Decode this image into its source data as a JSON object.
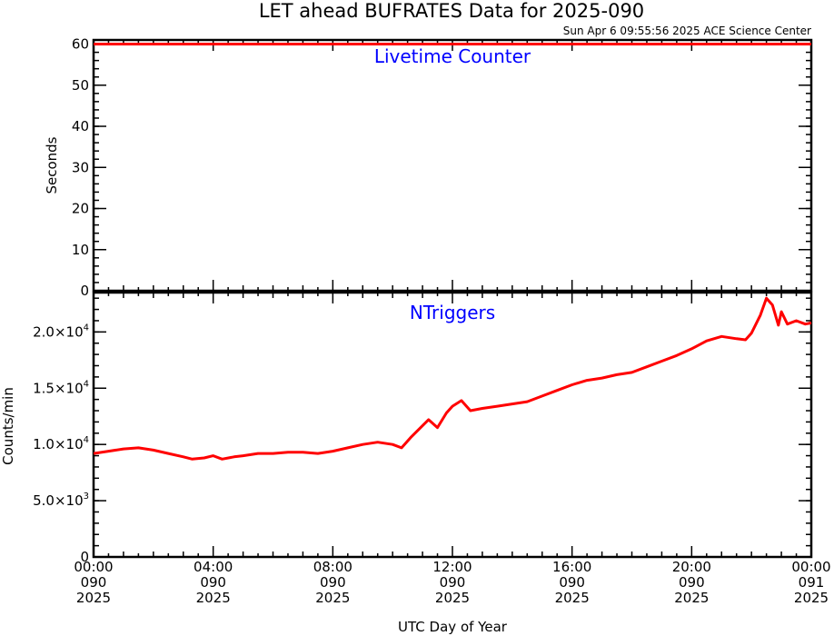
{
  "title": "LET ahead BUFRATES Data for 2025-090",
  "timestamp": "Sun Apr  6 09:55:56 2025 ACE Science Center",
  "xlabel": "UTC Day of Year",
  "colors": {
    "series": "#ff0000",
    "panel_title": "#0000ff",
    "axes": "#000000"
  },
  "x_ticks": [
    {
      "hours": 0,
      "time": "00:00",
      "doy": "090",
      "year": "2025"
    },
    {
      "hours": 4,
      "time": "04:00",
      "doy": "090",
      "year": "2025"
    },
    {
      "hours": 8,
      "time": "08:00",
      "doy": "090",
      "year": "2025"
    },
    {
      "hours": 12,
      "time": "12:00",
      "doy": "090",
      "year": "2025"
    },
    {
      "hours": 16,
      "time": "16:00",
      "doy": "090",
      "year": "2025"
    },
    {
      "hours": 20,
      "time": "20:00",
      "doy": "090",
      "year": "2025"
    },
    {
      "hours": 24,
      "time": "00:00",
      "doy": "091",
      "year": "2025"
    }
  ],
  "chart_data": [
    {
      "type": "line",
      "title": "Livetime Counter",
      "ylabel": "Seconds",
      "xlim": [
        0,
        24
      ],
      "ylim": [
        0,
        61
      ],
      "yticks": [
        {
          "value": 0,
          "label": "0"
        },
        {
          "value": 10,
          "label": "10"
        },
        {
          "value": 20,
          "label": "20"
        },
        {
          "value": 30,
          "label": "30"
        },
        {
          "value": 40,
          "label": "40"
        },
        {
          "value": 50,
          "label": "50"
        },
        {
          "value": 60,
          "label": "60"
        }
      ],
      "series": [
        {
          "x": [
            0,
            24
          ],
          "y": [
            60,
            60
          ]
        }
      ]
    },
    {
      "type": "line",
      "title": "NTriggers",
      "ylabel": "Counts/min",
      "xlim": [
        0,
        24
      ],
      "ylim": [
        0,
        23500
      ],
      "yticks": [
        {
          "value": 0,
          "mant": "0",
          "exp": ""
        },
        {
          "value": 5000,
          "mant": "5.0×10",
          "exp": "3"
        },
        {
          "value": 10000,
          "mant": "1.0×10",
          "exp": "4"
        },
        {
          "value": 15000,
          "mant": "1.5×10",
          "exp": "4"
        },
        {
          "value": 20000,
          "mant": "2.0×10",
          "exp": "4"
        }
      ],
      "series": [
        {
          "x": [
            0,
            0.5,
            1,
            1.5,
            2,
            2.5,
            3,
            3.3,
            3.7,
            4,
            4.3,
            4.7,
            5,
            5.5,
            6,
            6.5,
            7,
            7.5,
            8,
            8.5,
            9,
            9.5,
            10,
            10.3,
            10.6,
            10.9,
            11.2,
            11.5,
            11.8,
            12,
            12.3,
            12.6,
            13,
            13.5,
            14,
            14.5,
            15,
            15.5,
            16,
            16.5,
            17,
            17.5,
            18,
            18.5,
            19,
            19.5,
            20,
            20.5,
            21,
            21.5,
            21.8,
            22,
            22.3,
            22.5,
            22.7,
            22.9,
            23,
            23.2,
            23.5,
            23.8,
            24
          ],
          "y": [
            9200,
            9400,
            9600,
            9700,
            9500,
            9200,
            8900,
            8700,
            8800,
            9000,
            8700,
            8900,
            9000,
            9200,
            9200,
            9300,
            9300,
            9200,
            9400,
            9700,
            10000,
            10200,
            10000,
            9700,
            10600,
            11400,
            12200,
            11500,
            12800,
            13400,
            13900,
            13000,
            13200,
            13400,
            13600,
            13800,
            14300,
            14800,
            15300,
            15700,
            15900,
            16200,
            16400,
            16900,
            17400,
            17900,
            18500,
            19200,
            19600,
            19400,
            19300,
            19900,
            21500,
            23000,
            22400,
            20600,
            21800,
            20700,
            21000,
            20700,
            20800
          ]
        }
      ]
    }
  ]
}
